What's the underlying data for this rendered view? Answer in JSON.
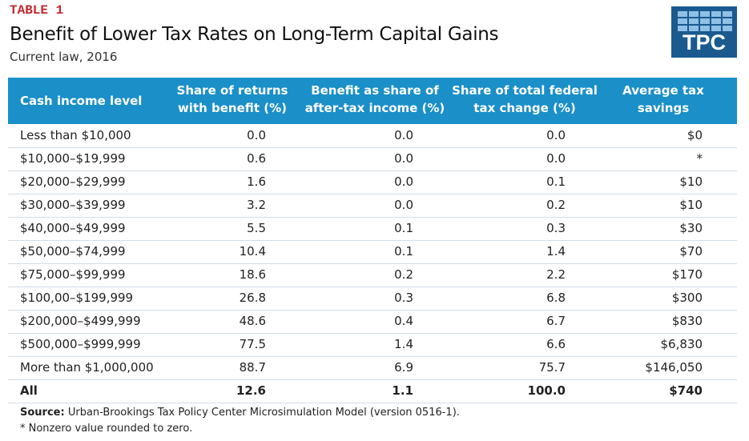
{
  "header": {
    "label": "TABLE 1",
    "title": "Benefit of Lower Tax Rates on Long-Term Capital Gains",
    "subtitle": "Current law, 2016",
    "logo": "TPC"
  },
  "table": {
    "columns": [
      [
        "Cash income level"
      ],
      [
        "Share of returns",
        "with benefit (%)"
      ],
      [
        "Benefit as share of",
        "after-tax income (%)"
      ],
      [
        "Share of total federal",
        "tax change (%)"
      ],
      [
        "Average tax",
        "savings"
      ]
    ],
    "rows": [
      [
        "Less than $10,000",
        "0.0",
        "0.0",
        "0.0",
        "$0"
      ],
      [
        "$10,000–$19,999",
        "0.6",
        "0.0",
        "0.0",
        "*"
      ],
      [
        "$20,000–$29,999",
        "1.6",
        "0.0",
        "0.1",
        "$10"
      ],
      [
        "$30,000–$39,999",
        "3.2",
        "0.0",
        "0.2",
        "$10"
      ],
      [
        "$40,000–$49,999",
        "5.5",
        "0.1",
        "0.3",
        "$30"
      ],
      [
        "$50,000–$74,999",
        "10.4",
        "0.1",
        "1.4",
        "$70"
      ],
      [
        "$75,000–$99,999",
        "18.6",
        "0.2",
        "2.2",
        "$170"
      ],
      [
        "$100,00–$199,999",
        "26.8",
        "0.3",
        "6.8",
        "$300"
      ],
      [
        "$200,000–$499,999",
        "48.6",
        "0.4",
        "6.7",
        "$830"
      ],
      [
        "$500,000–$999,999",
        "77.5",
        "1.4",
        "6.6",
        "$6,830"
      ],
      [
        "More than $1,000,000",
        "88.7",
        "6.9",
        "75.7",
        "$146,050"
      ],
      [
        "All",
        "12.6",
        "1.1",
        "100.0",
        "$740"
      ]
    ]
  },
  "footer": {
    "source_label": "Source:",
    "source": "Urban-Brookings Tax Policy Center Microsimulation Model (version 0516-1).",
    "note": "* Nonzero value rounded to zero."
  }
}
